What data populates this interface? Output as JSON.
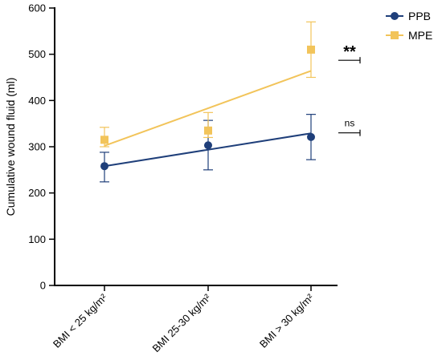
{
  "chart_data": {
    "type": "line",
    "ylabel": "Cumulative wound fluid (ml)",
    "xlabel": "",
    "ylim": [
      0,
      600
    ],
    "yticks": [
      0,
      100,
      200,
      300,
      400,
      500,
      600
    ],
    "categories": [
      "BMI < 25 kg/m²",
      "BMI 25-30 kg/m²",
      "BMI > 30 kg/m²"
    ],
    "legend_position": "top-right",
    "series": [
      {
        "name": "PPB",
        "color": "#1f3f7a",
        "marker": "circle",
        "values": [
          258,
          303,
          321
        ],
        "error_low": [
          224,
          250,
          272
        ],
        "error_high": [
          288,
          357,
          370
        ],
        "trend": [
          258,
          294,
          329
        ]
      },
      {
        "name": "MPE",
        "color": "#f2c45a",
        "marker": "square",
        "values": [
          315,
          335,
          510
        ],
        "error_low": [
          300,
          320,
          450
        ],
        "error_high": [
          342,
          374,
          570
        ],
        "trend": [
          302,
          383,
          464
        ]
      }
    ],
    "annotations": [
      {
        "text": "**",
        "series": "MPE",
        "y": 487
      },
      {
        "text": "ns",
        "series": "PPB",
        "y": 330
      }
    ]
  }
}
